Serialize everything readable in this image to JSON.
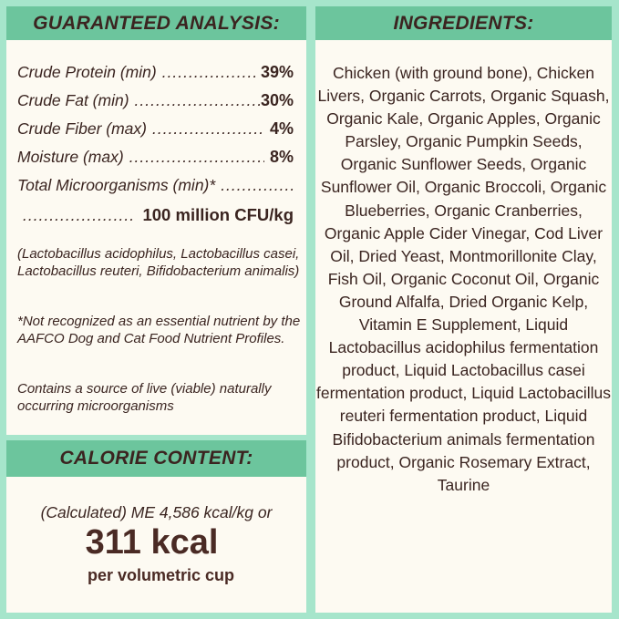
{
  "guaranteed_analysis": {
    "title": "GUARANTEED ANALYSIS:",
    "rows": [
      {
        "label": "Crude Protein (min)",
        "value": "39%"
      },
      {
        "label": "Crude Fat (min)",
        "value": "30%"
      },
      {
        "label": "Crude Fiber (max)",
        "value": "4%"
      },
      {
        "label": "Moisture (max)",
        "value": "8%"
      }
    ],
    "micro_label": "Total Microorganisms (min)*",
    "micro_value": "100 million CFU/kg",
    "strains": "(Lactobacillus acidophilus, Lactobacillus casei, Lactobacillus reuteri, Bifidobacterium animalis)",
    "footnote": "*Not recognized as an essential nutrient by the AAFCO Dog and Cat Food Nutrient Profiles.",
    "live_note": "Contains a source of live (viable) naturally occurring microorganisms"
  },
  "calorie_content": {
    "title": "CALORIE CONTENT:",
    "calculated": "(Calculated) ME 4,586 kcal/kg or",
    "kcal": "311 kcal",
    "per": "per volumetric cup"
  },
  "ingredients": {
    "title": "INGREDIENTS:",
    "text": "Chicken (with ground bone), Chicken Livers, Organic Carrots, Organic Squash, Organic Kale, Organic Apples, Organic Parsley, Organic Pumpkin Seeds, Organic Sunflower Seeds, Organic Sunflower Oil, Organic Broccoli, Organic Blueberries, Organic Cranberries, Organic Apple Cider Vinegar, Cod Liver Oil, Dried Yeast, Montmorillonite Clay, Fish Oil, Organic Coconut Oil, Organic Ground Alfalfa, Dried Organic Kelp, Vitamin E Supplement, Liquid Lactobacillus acidophilus fermentation product, Liquid Lactobacillus casei fermentation product, Liquid Lactobacillus reuteri fermentation product, Liquid Bifidobacterium animals fermentation product, Organic Rosemary Extract, Taurine"
  },
  "colors": {
    "background": "#a6e5cb",
    "header": "#6cc59d",
    "panel": "#fdfaf2",
    "text": "#3a2420"
  }
}
